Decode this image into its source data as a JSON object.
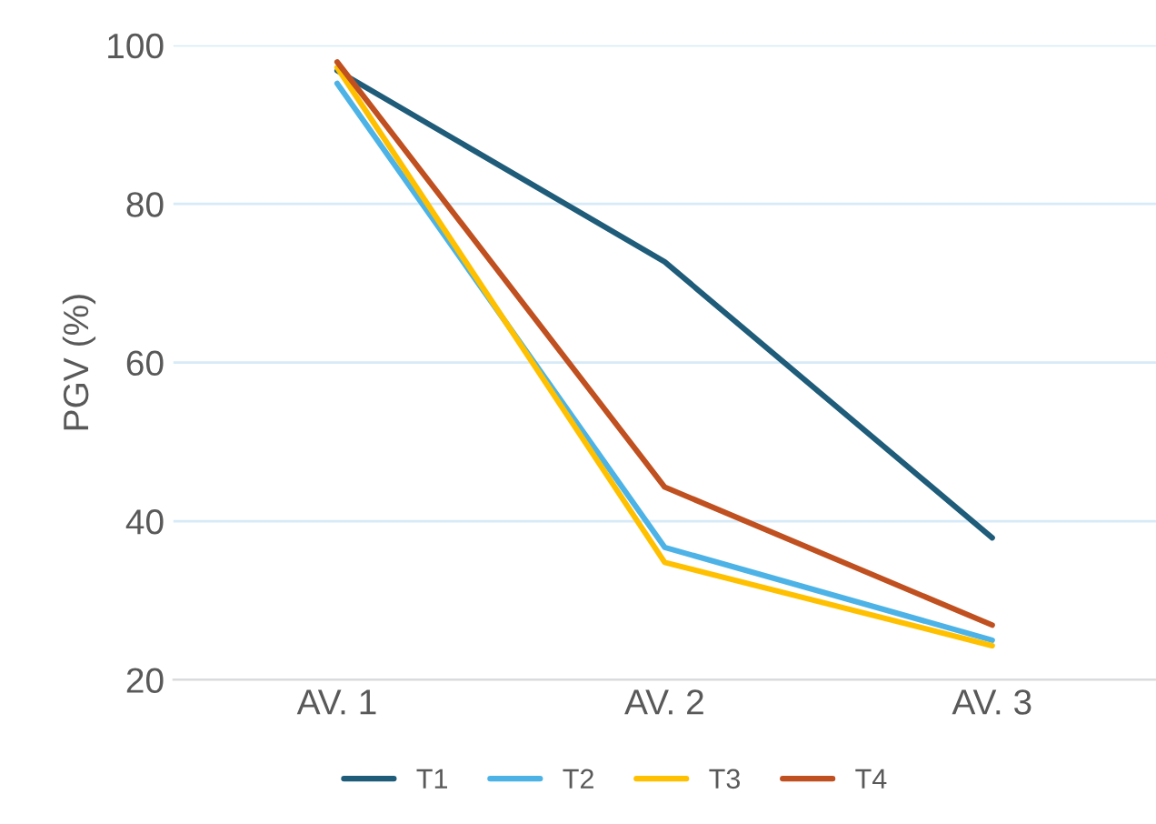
{
  "chart_data": {
    "type": "line",
    "ylabel": "PGV (%)",
    "categories": [
      "AV. 1",
      "AV. 2",
      "AV. 3"
    ],
    "series": [
      {
        "name": "T1",
        "color": "#1f5c7a",
        "values": [
          96.8,
          72.7,
          37.9
        ]
      },
      {
        "name": "T2",
        "color": "#4db3e6",
        "values": [
          95.2,
          36.7,
          25.0
        ]
      },
      {
        "name": "T3",
        "color": "#ffc000",
        "values": [
          97.2,
          34.8,
          24.3
        ]
      },
      {
        "name": "T4",
        "color": "#c0501f",
        "values": [
          97.9,
          44.3,
          26.9
        ]
      }
    ],
    "ylim": [
      20,
      100
    ],
    "yticks": [
      20,
      40,
      60,
      80,
      100
    ],
    "grid": "y",
    "legend": "bottom",
    "marker": "none",
    "line_style": "solid"
  }
}
